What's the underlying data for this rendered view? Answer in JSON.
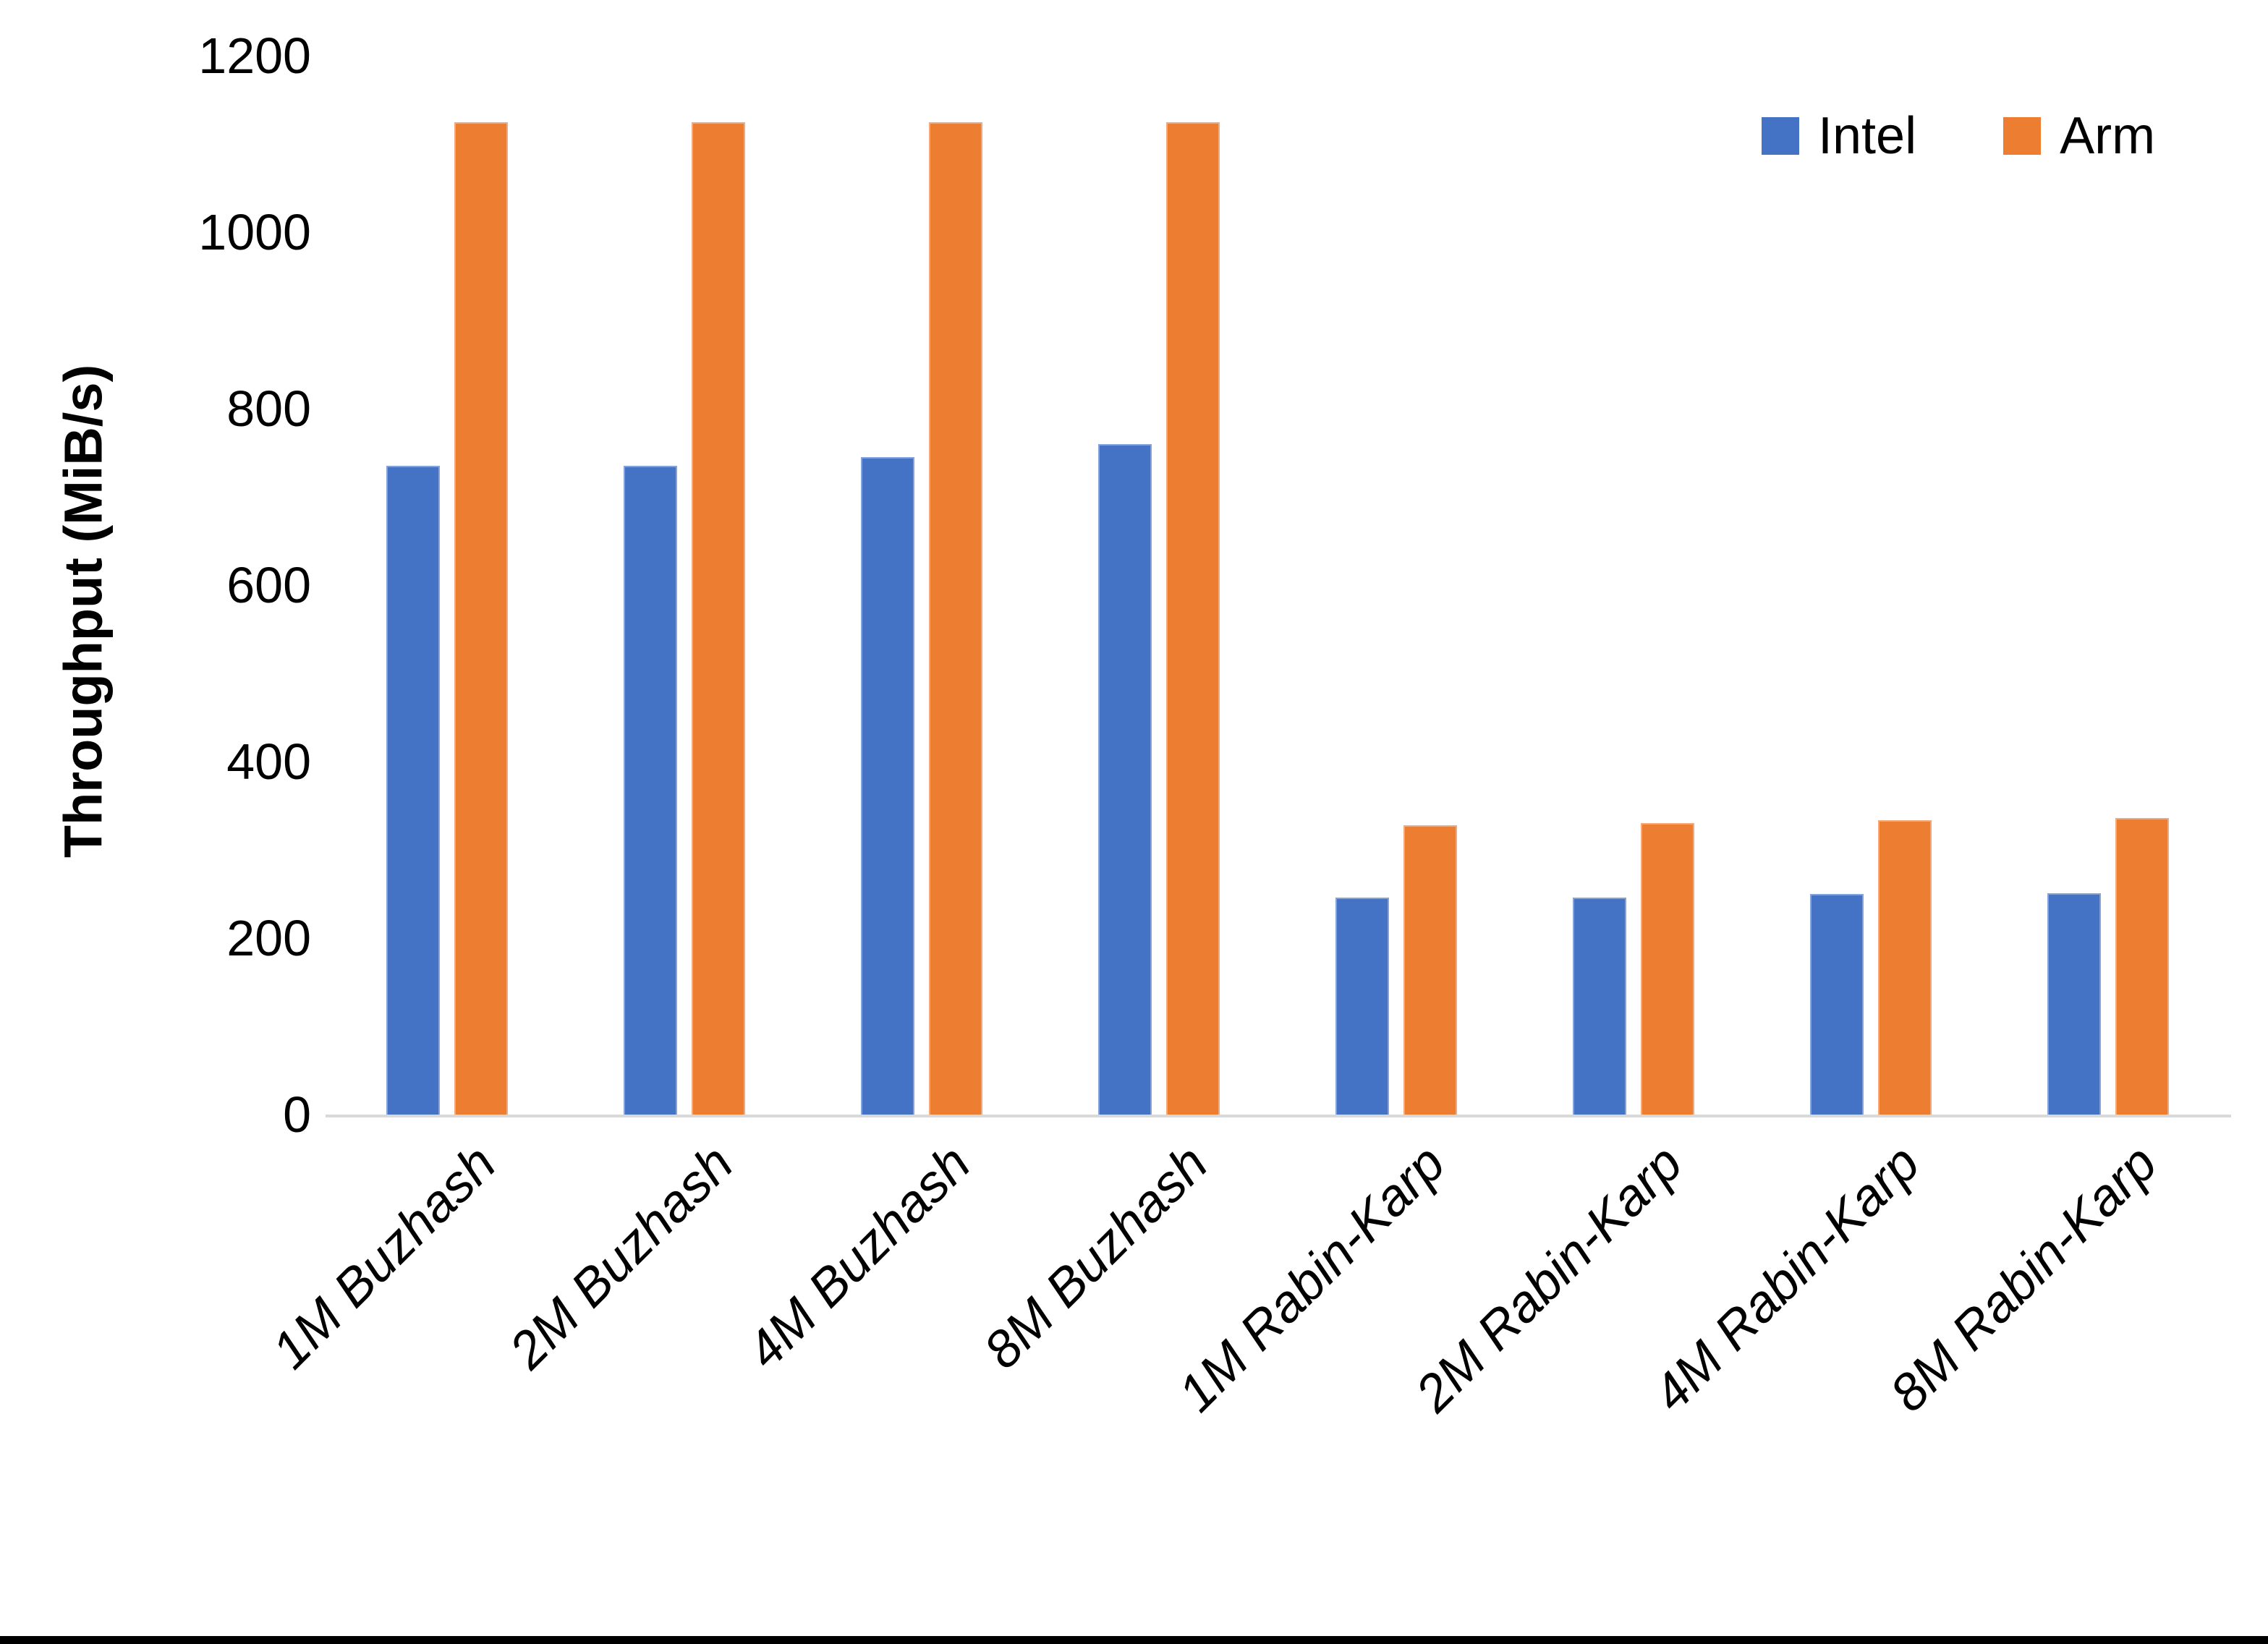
{
  "chart_data": {
    "type": "bar",
    "title": "",
    "ylabel": "Throughput (MiB/s)",
    "ylim": [
      0,
      1200
    ],
    "yticks": [
      0,
      200,
      400,
      600,
      800,
      1000,
      1200
    ],
    "grid": false,
    "legend_position": "top-right",
    "categories": [
      "1M Buzhash",
      "2M Buzhash",
      "4M Buzhash",
      "8M Buzhash",
      "1M Rabin-Karp",
      "2M Rabin-Karp",
      "4M Rabin-Karp",
      "8M Rabin-Karp"
    ],
    "series": [
      {
        "name": "Intel",
        "color": "#4472C4",
        "values": [
          735,
          735,
          745,
          760,
          246,
          246,
          250,
          251
        ]
      },
      {
        "name": "Arm",
        "color": "#ED7D31",
        "values": [
          1125,
          1125,
          1125,
          1125,
          328,
          330,
          334,
          336
        ]
      }
    ],
    "baseline_color": "#d9d9d9"
  }
}
